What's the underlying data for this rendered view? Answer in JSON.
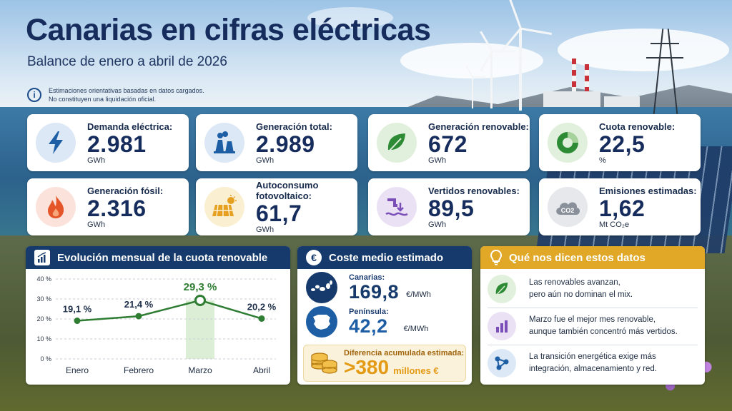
{
  "header": {
    "title": "Canarias en cifras eléctricas",
    "subtitle": "Balance de enero a abril de 2026",
    "note_line1": "Estimaciones orientativas basadas en datos cargados.",
    "note_line2": "No constituyen una liquidación oficial.",
    "note_icon": "info-icon"
  },
  "kpis": [
    {
      "label": "Demanda eléctrica:",
      "value": "2.981",
      "unit": "GWh",
      "icon": "lightning-icon",
      "color": "#1d5ea5"
    },
    {
      "label": "Generación total:",
      "value": "2.989",
      "unit": "GWh",
      "icon": "power-plant-icon",
      "color": "#1d5ea5"
    },
    {
      "label": "Generación renovable:",
      "value": "672",
      "unit": "GWh",
      "icon": "leaf-icon",
      "color": "#2e8b35"
    },
    {
      "label": "Cuota renovable:",
      "value": "22,5",
      "unit": "%",
      "icon": "pie-chart-icon",
      "color": "#2e8b35"
    },
    {
      "label": "Generación fósil:",
      "value": "2.316",
      "unit": "GWh",
      "icon": "flame-icon",
      "color": "#e5552a"
    },
    {
      "label_line1": "Autoconsumo",
      "label_line2": "fotovoltaico:",
      "value": "61,7",
      "unit": "GWh",
      "icon": "solar-panel-icon",
      "color": "#e5a020"
    },
    {
      "label": "Vertidos renovables:",
      "value": "89,5",
      "unit": "GWh",
      "icon": "curtailment-icon",
      "color": "#7b4fb8"
    },
    {
      "label": "Emisiones estimadas:",
      "value": "1,62",
      "unit": "Mt CO₂e",
      "icon": "co2-cloud-icon",
      "color": "#555d66"
    }
  ],
  "chart_panel": {
    "title": "Evolución mensual de la cuota renovable",
    "icon": "bar-growth-icon"
  },
  "chart_data": {
    "type": "line",
    "title": "Evolución mensual de la cuota renovable",
    "categories": [
      "Enero",
      "Febrero",
      "Marzo",
      "Abril"
    ],
    "values": [
      19.1,
      21.4,
      29.3,
      20.2
    ],
    "data_labels": [
      "19,1 %",
      "21,4 %",
      "29,3 %",
      "20,2 %"
    ],
    "y_ticks": [
      "0 %",
      "10 %",
      "20 %",
      "30 %",
      "40 %"
    ],
    "ylim": [
      0,
      40
    ],
    "highlight_category": "Marzo",
    "grid": true,
    "line_color": "#2e7d32"
  },
  "cost_panel": {
    "title": "Coste medio estimado",
    "icon": "euro-icon",
    "canarias_label": "Canarias:",
    "canarias_value": "169,8",
    "canarias_unit": "€/MWh",
    "peninsula_label": "Península:",
    "peninsula_value": "42,2",
    "peninsula_unit": "€/MWh",
    "diff_label": "Diferencia acumulada estimada:",
    "diff_value": ">380",
    "diff_unit": "millones €",
    "diff_icon": "coins-icon"
  },
  "insights_panel": {
    "title": "Qué nos dicen estos datos",
    "icon": "lightbulb-icon",
    "items": [
      {
        "line1": "Las renovables avanzan,",
        "line2": "pero aún no dominan el mix.",
        "icon": "leaf-icon",
        "color": "#2e8b35"
      },
      {
        "line1": "Marzo fue el mejor mes renovable,",
        "line2": "aunque también concentró más vertidos.",
        "icon": "bar-chart-icon",
        "color": "#7b4fb8"
      },
      {
        "line1": "La transición energética exige más",
        "line2": "integración, almacenamiento y red.",
        "icon": "network-icon",
        "color": "#1d5ea5"
      }
    ]
  }
}
